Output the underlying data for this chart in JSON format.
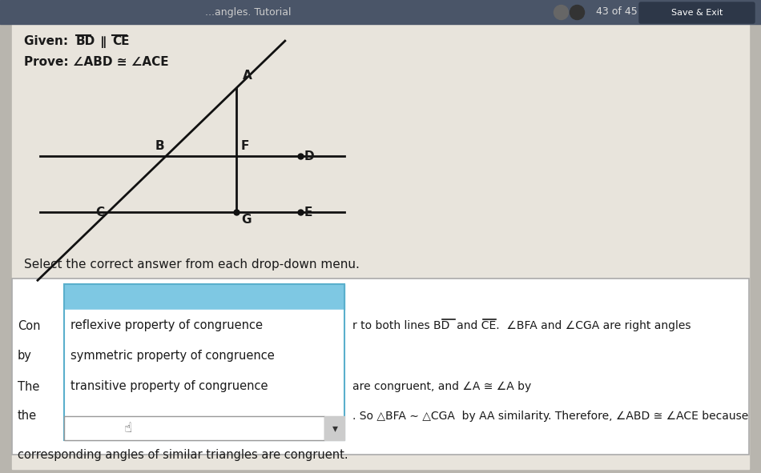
{
  "bg_outer": "#b8b5ae",
  "bg_inner": "#e8e4dc",
  "top_bar_color": "#4a5568",
  "navbar_text": "43 of 45",
  "save_btn_color": "#2d3748",
  "save_btn_text": "Save & Exit",
  "given_text": "Given: BD ∥ CE",
  "prove_text": "Prove: ∠ABD ≅ ∠ACE",
  "select_text": "Select the correct answer from each drop-down menu.",
  "line_color": "#111111",
  "dot_color": "#111111",
  "dropdown_border_color": "#5aafcc",
  "dropdown_top_color": "#7ec8e3",
  "dropdown_bg": "#ffffff",
  "proof_box_bg": "#ffffff",
  "proof_box_border": "#aaaaaa",
  "dropdown_options": [
    "reflexive property of congruence",
    "symmetric property of congruence",
    "transitive property of congruence"
  ],
  "proof_left_col": [
    "Con",
    "by",
    "The",
    "the"
  ],
  "proof_right_line1": "r to both lines BD and CE. ∠BFA and ∠CGA are right angles",
  "proof_right_line3": "are congruent, and ∠A ≅ ∠A by",
  "proof_right_line4": ". So △BFA ∼ △CGA  by AA similarity. Therefore, ∠ABD ≅ ∠ACE because",
  "proof_line5": "corresponding angles of similar triangles are congruent.",
  "partial_title": "...angles. Tutorial"
}
